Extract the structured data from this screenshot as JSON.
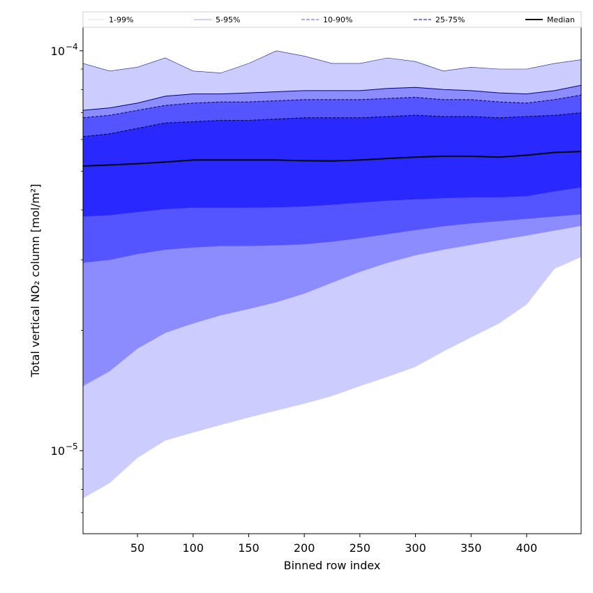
{
  "chart_data": {
    "type": "area",
    "title": "",
    "xlabel": "Binned row index",
    "ylabel": "Total vertical NO₂ column [mol/m²]",
    "xlim": [
      1,
      449
    ],
    "ylim": [
      6.2e-06,
      0.000115
    ],
    "yscale": "log",
    "grid": false,
    "x_ticks": [
      50,
      100,
      150,
      200,
      250,
      300,
      350,
      400
    ],
    "y_ticks": [
      {
        "value": 1e-05,
        "base": "10",
        "exp": "−5"
      },
      {
        "value": 0.0001,
        "base": "10",
        "exp": "−4"
      }
    ],
    "legend": {
      "placement": "top, outside plot, single row",
      "entries": [
        {
          "label": "1-99%",
          "style": "thin",
          "color": "#d8d8ff"
        },
        {
          "label": "5-95%",
          "style": "thin",
          "color": "#8080ff"
        },
        {
          "label": "10-90%",
          "style": "dashed",
          "color": "#9090ff"
        },
        {
          "label": "25-75%",
          "style": "dashed",
          "color": "#5050e0"
        },
        {
          "label": "Median",
          "style": "solid",
          "color": "#000000"
        }
      ]
    },
    "x": [
      1,
      25,
      50,
      75,
      100,
      125,
      150,
      175,
      200,
      225,
      250,
      275,
      300,
      325,
      350,
      375,
      400,
      425,
      449
    ],
    "series": [
      {
        "name": "1-99%",
        "fill": "#ccccff",
        "edge": "#1a1a80",
        "lower": [
          7.6e-06,
          8.3e-06,
          9.6e-06,
          1.06e-05,
          1.11e-05,
          1.16e-05,
          1.21e-05,
          1.26e-05,
          1.31e-05,
          1.37e-05,
          1.45e-05,
          1.53e-05,
          1.62e-05,
          1.77e-05,
          1.92e-05,
          2.08e-05,
          2.32e-05,
          2.85e-05,
          3.05e-05
        ],
        "upper": [
          9.3e-05,
          8.9e-05,
          9.1e-05,
          9.6e-05,
          8.9e-05,
          8.8e-05,
          9.3e-05,
          0.0001,
          9.7e-05,
          9.3e-05,
          9.3e-05,
          9.6e-05,
          9.4e-05,
          8.9e-05,
          9.1e-05,
          9e-05,
          9e-05,
          9.3e-05,
          9.5e-05
        ]
      },
      {
        "name": "5-95%",
        "fill": "#8c8cff",
        "edge": "#000080",
        "lower": [
          1.45e-05,
          1.58e-05,
          1.8e-05,
          1.97e-05,
          2.08e-05,
          2.18e-05,
          2.26e-05,
          2.35e-05,
          2.47e-05,
          2.63e-05,
          2.8e-05,
          2.95e-05,
          3.08e-05,
          3.18e-05,
          3.27e-05,
          3.36e-05,
          3.45e-05,
          3.55e-05,
          3.65e-05
        ],
        "upper": [
          7.1e-05,
          7.2e-05,
          7.4e-05,
          7.7e-05,
          7.8e-05,
          7.8e-05,
          7.85e-05,
          7.9e-05,
          7.95e-05,
          7.95e-05,
          7.95e-05,
          8.05e-05,
          8.1e-05,
          8e-05,
          7.95e-05,
          7.85e-05,
          7.8e-05,
          7.95e-05,
          8.2e-05
        ]
      },
      {
        "name": "10-90%",
        "fill": "#5555ff",
        "edge": "#000060",
        "lower": [
          2.95e-05,
          3e-05,
          3.1e-05,
          3.18e-05,
          3.22e-05,
          3.25e-05,
          3.25e-05,
          3.26e-05,
          3.28e-05,
          3.33e-05,
          3.4e-05,
          3.48e-05,
          3.56e-05,
          3.64e-05,
          3.7e-05,
          3.75e-05,
          3.8e-05,
          3.85e-05,
          3.9e-05
        ],
        "upper": [
          6.8e-05,
          6.9e-05,
          7.1e-05,
          7.3e-05,
          7.4e-05,
          7.45e-05,
          7.45e-05,
          7.5e-05,
          7.55e-05,
          7.55e-05,
          7.55e-05,
          7.6e-05,
          7.65e-05,
          7.55e-05,
          7.55e-05,
          7.45e-05,
          7.4e-05,
          7.55e-05,
          7.75e-05
        ]
      },
      {
        "name": "25-75%",
        "fill": "#2828ff",
        "edge": "#000040",
        "lower": [
          3.85e-05,
          3.88e-05,
          3.95e-05,
          4.02e-05,
          4.05e-05,
          4.05e-05,
          4.05e-05,
          4.06e-05,
          4.08e-05,
          4.12e-05,
          4.17e-05,
          4.22e-05,
          4.25e-05,
          4.28e-05,
          4.3e-05,
          4.3e-05,
          4.33e-05,
          4.45e-05,
          4.55e-05
        ],
        "upper": [
          6.1e-05,
          6.2e-05,
          6.4e-05,
          6.6e-05,
          6.65e-05,
          6.7e-05,
          6.7e-05,
          6.75e-05,
          6.8e-05,
          6.8e-05,
          6.8e-05,
          6.85e-05,
          6.9e-05,
          6.85e-05,
          6.85e-05,
          6.8e-05,
          6.85e-05,
          6.9e-05,
          7e-05
        ]
      }
    ],
    "median": {
      "name": "Median",
      "color": "#000000",
      "values": [
        5.15e-05,
        5.18e-05,
        5.22e-05,
        5.27e-05,
        5.33e-05,
        5.33e-05,
        5.33e-05,
        5.33e-05,
        5.31e-05,
        5.3e-05,
        5.33e-05,
        5.38e-05,
        5.42e-05,
        5.45e-05,
        5.45e-05,
        5.42e-05,
        5.48e-05,
        5.57e-05,
        5.6e-05
      ]
    }
  }
}
